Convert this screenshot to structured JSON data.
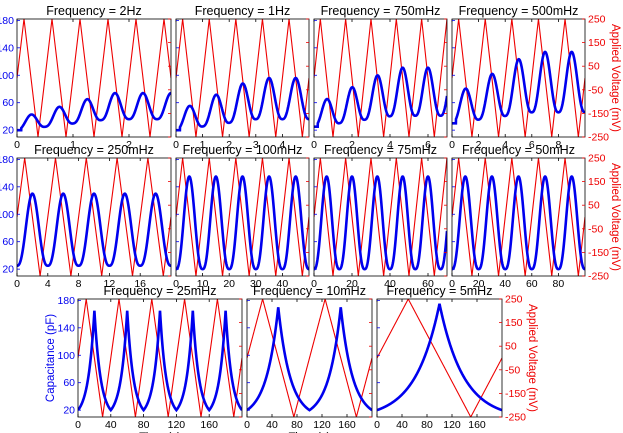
{
  "figure": {
    "left_axis_label": "Capacitance (pF)",
    "right_axis_label": "Applied Voltage (mV)",
    "x_axis_label": "Time (s)",
    "colors": {
      "capacitance": "#0000ee",
      "voltage": "#ee0000",
      "frame": "#000000",
      "text": "#000000"
    }
  },
  "chart_data": [
    {
      "type": "line",
      "title": "Frequency = 2Hz",
      "period_s": 0.5,
      "xlim": [
        0,
        2.75
      ],
      "xticks": [
        0,
        1,
        2
      ],
      "cap_min": 20,
      "cap_max": 58,
      "cap_rise": 20,
      "cap_shape": "growing",
      "y_left": [
        20,
        60,
        100,
        140,
        180
      ],
      "y_right": [
        -250,
        -150,
        -50,
        50,
        150,
        250
      ],
      "ylim_left": [
        10,
        182
      ],
      "ylim_right": [
        -250,
        250
      ],
      "v_amp": 250
    },
    {
      "type": "line",
      "title": "Frequency = 1Hz",
      "period_s": 1,
      "xlim": [
        0,
        5
      ],
      "xticks": [
        0,
        1,
        2,
        3,
        4
      ],
      "cap_min": 20,
      "cap_max": 80,
      "cap_rise": 20,
      "cap_shape": "growing",
      "y_left": [
        20,
        60,
        100,
        140,
        180
      ],
      "y_right": [
        -250,
        -150,
        -50,
        50,
        150,
        250
      ],
      "ylim_left": [
        10,
        182
      ],
      "ylim_right": [
        -250,
        250
      ],
      "v_amp": 250
    },
    {
      "type": "line",
      "title": "Frequency = 750mHz",
      "period_s": 1.333,
      "xlim": [
        0,
        7
      ],
      "xticks": [
        0,
        2,
        4,
        6
      ],
      "cap_min": 25,
      "cap_max": 95,
      "cap_rise": 20,
      "cap_shape": "growing",
      "y_left": [
        20,
        60,
        100,
        140,
        180
      ],
      "y_right": [
        -250,
        -150,
        -50,
        50,
        150,
        250
      ],
      "ylim_left": [
        10,
        182
      ],
      "ylim_right": [
        -250,
        250
      ],
      "v_amp": 250
    },
    {
      "type": "line",
      "title": "Frequency = 500mHz",
      "period_s": 2,
      "xlim": [
        0,
        10
      ],
      "xticks": [
        0,
        2,
        4,
        6,
        8
      ],
      "cap_min": 30,
      "cap_max": 118,
      "cap_rise": 20,
      "cap_shape": "growing",
      "y_left": [
        20,
        60,
        100,
        140,
        180
      ],
      "y_right": [
        -250,
        -150,
        -50,
        50,
        150,
        250
      ],
      "ylim_left": [
        10,
        182
      ],
      "ylim_right": [
        -250,
        250
      ],
      "v_amp": 250
    },
    {
      "type": "line",
      "title": "Frequency = 250mHz",
      "period_s": 4,
      "xlim": [
        0,
        20
      ],
      "xticks": [
        0,
        4,
        8,
        12,
        16
      ],
      "cap_min": 25,
      "cap_max": 130,
      "cap_rise": 0,
      "cap_shape": "steady",
      "y_left": [
        20,
        60,
        100,
        140,
        180
      ],
      "y_right": [
        -250,
        -150,
        -50,
        50,
        150,
        250
      ],
      "ylim_left": [
        10,
        182
      ],
      "ylim_right": [
        -250,
        250
      ],
      "v_amp": 250
    },
    {
      "type": "line",
      "title": "Frequency = 100mHz",
      "period_s": 10,
      "xlim": [
        0,
        50
      ],
      "xticks": [
        0,
        10,
        20,
        30,
        40
      ],
      "cap_min": 20,
      "cap_max": 155,
      "cap_rise": 0,
      "cap_shape": "steady",
      "y_left": [
        20,
        60,
        100,
        140,
        180
      ],
      "y_right": [
        -250,
        -150,
        -50,
        50,
        150,
        250
      ],
      "ylim_left": [
        10,
        182
      ],
      "ylim_right": [
        -250,
        250
      ],
      "v_amp": 250
    },
    {
      "type": "line",
      "title": "Frequency = 75mHz",
      "period_s": 13.33,
      "xlim": [
        0,
        70
      ],
      "xticks": [
        0,
        20,
        40,
        60
      ],
      "cap_min": 20,
      "cap_max": 155,
      "cap_rise": 0,
      "cap_shape": "steady",
      "y_left": [
        20,
        60,
        100,
        140,
        180
      ],
      "y_right": [
        -250,
        -150,
        -50,
        50,
        150,
        250
      ],
      "ylim_left": [
        10,
        182
      ],
      "ylim_right": [
        -250,
        250
      ],
      "v_amp": 250
    },
    {
      "type": "line",
      "title": "Frequency = 50mHz",
      "period_s": 20,
      "xlim": [
        0,
        100
      ],
      "xticks": [
        0,
        20,
        40,
        60,
        80
      ],
      "cap_min": 20,
      "cap_max": 155,
      "cap_rise": 0,
      "cap_shape": "steady",
      "y_left": [
        20,
        60,
        100,
        140,
        180
      ],
      "y_right": [
        -250,
        -150,
        -50,
        50,
        150,
        250
      ],
      "ylim_left": [
        10,
        182
      ],
      "ylim_right": [
        -250,
        250
      ],
      "v_amp": 250
    },
    {
      "type": "line",
      "title": "Frequency = 25mHz",
      "period_s": 40,
      "xlim": [
        0,
        200
      ],
      "xticks": [
        0,
        40,
        80,
        120,
        160
      ],
      "cap_min": 20,
      "cap_max": 165,
      "cap_rise": 0,
      "cap_shape": "cusp",
      "y_left": [
        20,
        60,
        100,
        140,
        180
      ],
      "y_right": [
        -250,
        -150,
        -50,
        50,
        150,
        250
      ],
      "ylim_left": [
        10,
        182
      ],
      "ylim_right": [
        -250,
        250
      ],
      "v_amp": 250
    },
    {
      "type": "line",
      "title": "Frequency = 10mHz",
      "period_s": 100,
      "xlim": [
        0,
        200
      ],
      "xticks": [
        0,
        40,
        80,
        120,
        160
      ],
      "cap_min": 20,
      "cap_max": 170,
      "cap_rise": 0,
      "cap_shape": "cusp",
      "y_left": [
        20,
        60,
        100,
        140,
        180
      ],
      "y_right": [
        -250,
        -150,
        -50,
        50,
        150,
        250
      ],
      "ylim_left": [
        10,
        182
      ],
      "ylim_right": [
        -250,
        250
      ],
      "v_amp": 250
    },
    {
      "type": "line",
      "title": "Frequency = 5mHz",
      "period_s": 200,
      "xlim": [
        0,
        200
      ],
      "xticks": [
        0,
        40,
        80,
        120,
        160
      ],
      "cap_min": 20,
      "cap_max": 175,
      "cap_rise": 0,
      "cap_shape": "cusp",
      "y_left": [
        20,
        60,
        100,
        140,
        180
      ],
      "y_right": [
        -250,
        -150,
        -50,
        50,
        150,
        250
      ],
      "ylim_left": [
        10,
        182
      ],
      "ylim_right": [
        -250,
        250
      ],
      "v_amp": 250
    }
  ]
}
